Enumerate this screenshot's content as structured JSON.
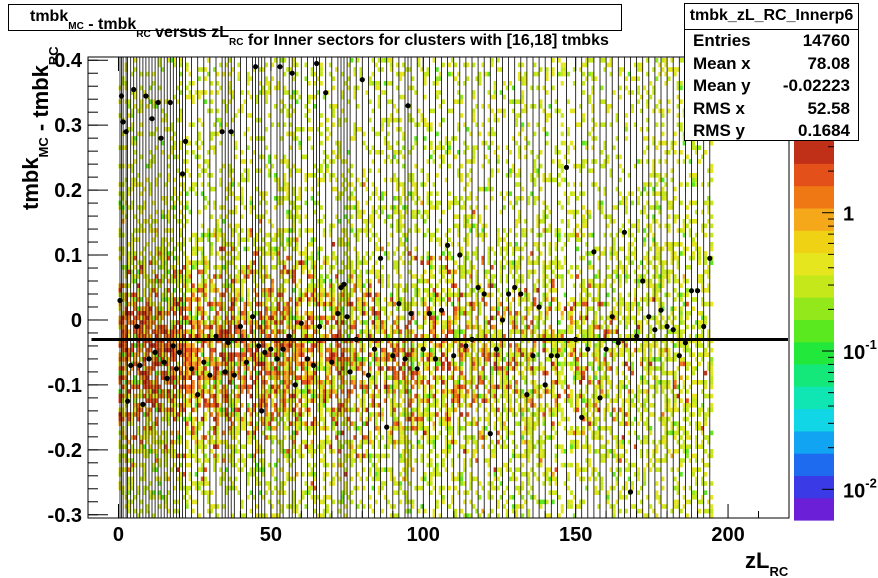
{
  "title": {
    "parts": [
      {
        "text": "tmbk",
        "sub": "MC"
      },
      {
        "text": " - tmbk",
        "sub": "RC"
      },
      {
        "text": " versus zL",
        "sub": "RC"
      },
      {
        "text": " for Inner sectors for clusters with [16,18] tmbks",
        "sub": ""
      }
    ]
  },
  "stats": {
    "name": "tmbk_zL_RC_Innerp6",
    "rows": [
      {
        "label": "Entries",
        "value": "14760"
      },
      {
        "label": "Mean x",
        "value": "78.08"
      },
      {
        "label": "Mean y",
        "value": "-0.02223"
      },
      {
        "label": "RMS x",
        "value": "52.58"
      },
      {
        "label": "RMS y",
        "value": "0.1684"
      }
    ]
  },
  "chart_data": {
    "type": "heatmap",
    "xlabel": {
      "main": "zL",
      "sub": "RC"
    },
    "ylabel": {
      "parts": [
        {
          "text": "tmbk",
          "sub": "MC"
        },
        {
          "text": " - tmbk",
          "sub": "RC"
        }
      ]
    },
    "xlim": [
      -10,
      220
    ],
    "ylim": [
      -0.305,
      0.405
    ],
    "x_ticks": [
      0,
      50,
      100,
      150,
      200
    ],
    "x_tick_labels": [
      "0",
      "50",
      "100",
      "150",
      "200"
    ],
    "y_ticks": [
      -0.3,
      -0.2,
      -0.1,
      0,
      0.1,
      0.2,
      0.3,
      0.4
    ],
    "y_tick_labels": [
      "-0.3",
      "-0.2",
      "-0.1",
      "0",
      "0.1",
      "0.2",
      "0.3",
      "0.4"
    ],
    "z_scale": "log",
    "z_ticks": [
      0.01,
      0.1,
      1
    ],
    "z_tick_labels": [
      {
        "base": "10",
        "exp": "-2"
      },
      {
        "base": "10",
        "exp": "-1"
      },
      {
        "base": "1",
        "exp": ""
      }
    ],
    "palette": [
      "#6b1fd6",
      "#3a3ae6",
      "#1e6bf0",
      "#10a4f2",
      "#10d6e6",
      "#10e6b4",
      "#14e87a",
      "#22e83c",
      "#5ae81e",
      "#92e81a",
      "#c4e81a",
      "#e6e61e",
      "#f0d214",
      "#f4a81a",
      "#f07814",
      "#e4501a",
      "#c03018"
    ],
    "occupied_x_range": [
      0,
      195
    ],
    "mean_line_y": -0.03,
    "profile_points": [
      {
        "x": 0.5,
        "y": 0.03
      },
      {
        "x": 1,
        "y": 0.345
      },
      {
        "x": 1.5,
        "y": 0.305
      },
      {
        "x": 2.5,
        "y": 0.29
      },
      {
        "x": 3,
        "y": -0.125
      },
      {
        "x": 4,
        "y": -0.07
      },
      {
        "x": 5,
        "y": 0.355
      },
      {
        "x": 6,
        "y": -0.01
      },
      {
        "x": 7,
        "y": -0.07
      },
      {
        "x": 8,
        "y": -0.13
      },
      {
        "x": 9,
        "y": 0.345
      },
      {
        "x": 10,
        "y": -0.06
      },
      {
        "x": 11,
        "y": 0.31
      },
      {
        "x": 12,
        "y": -0.05
      },
      {
        "x": 13,
        "y": 0.335
      },
      {
        "x": 14,
        "y": 0.28
      },
      {
        "x": 15,
        "y": -0.065
      },
      {
        "x": 16,
        "y": -0.09
      },
      {
        "x": 17,
        "y": 0.335
      },
      {
        "x": 18,
        "y": -0.04
      },
      {
        "x": 19,
        "y": -0.075
      },
      {
        "x": 20,
        "y": -0.05
      },
      {
        "x": 21,
        "y": 0.225
      },
      {
        "x": 22,
        "y": 0.275
      },
      {
        "x": 24,
        "y": -0.075
      },
      {
        "x": 26,
        "y": -0.115
      },
      {
        "x": 28,
        "y": -0.065
      },
      {
        "x": 30,
        "y": -0.085
      },
      {
        "x": 32,
        "y": -0.025
      },
      {
        "x": 34,
        "y": 0.29
      },
      {
        "x": 35,
        "y": -0.08
      },
      {
        "x": 36,
        "y": -0.035
      },
      {
        "x": 37,
        "y": 0.29
      },
      {
        "x": 38,
        "y": -0.085
      },
      {
        "x": 40,
        "y": -0.01
      },
      {
        "x": 42,
        "y": -0.065
      },
      {
        "x": 44,
        "y": 0.005
      },
      {
        "x": 45,
        "y": 0.39
      },
      {
        "x": 46,
        "y": -0.04
      },
      {
        "x": 47,
        "y": -0.14
      },
      {
        "x": 48,
        "y": -0.05
      },
      {
        "x": 50,
        "y": -0.045
      },
      {
        "x": 52,
        "y": -0.06
      },
      {
        "x": 53,
        "y": 0.39
      },
      {
        "x": 54,
        "y": -0.045
      },
      {
        "x": 56,
        "y": -0.025
      },
      {
        "x": 57,
        "y": 0.38
      },
      {
        "x": 58,
        "y": -0.1
      },
      {
        "x": 60,
        "y": -0.005
      },
      {
        "x": 62,
        "y": -0.06
      },
      {
        "x": 64,
        "y": -0.07
      },
      {
        "x": 65,
        "y": 0.395
      },
      {
        "x": 66,
        "y": -0.01
      },
      {
        "x": 68,
        "y": 0.35
      },
      {
        "x": 70,
        "y": -0.065
      },
      {
        "x": 72,
        "y": 0.01
      },
      {
        "x": 73,
        "y": 0.05
      },
      {
        "x": 74,
        "y": 0.055
      },
      {
        "x": 75,
        "y": 0.005
      },
      {
        "x": 76,
        "y": -0.08
      },
      {
        "x": 78,
        "y": -0.03
      },
      {
        "x": 80,
        "y": 0.37
      },
      {
        "x": 82,
        "y": -0.085
      },
      {
        "x": 84,
        "y": -0.045
      },
      {
        "x": 86,
        "y": 0.095
      },
      {
        "x": 88,
        "y": -0.165
      },
      {
        "x": 90,
        "y": -0.055
      },
      {
        "x": 92,
        "y": 0.025
      },
      {
        "x": 94,
        "y": -0.06
      },
      {
        "x": 95,
        "y": 0.33
      },
      {
        "x": 96,
        "y": 0.01
      },
      {
        "x": 98,
        "y": -0.075
      },
      {
        "x": 100,
        "y": -0.045
      },
      {
        "x": 102,
        "y": 0.01
      },
      {
        "x": 104,
        "y": -0.06
      },
      {
        "x": 106,
        "y": 0.015
      },
      {
        "x": 108,
        "y": 0.115
      },
      {
        "x": 110,
        "y": -0.055
      },
      {
        "x": 112,
        "y": 0.1
      },
      {
        "x": 114,
        "y": -0.04
      },
      {
        "x": 116,
        "y": -0.03
      },
      {
        "x": 118,
        "y": 0.05
      },
      {
        "x": 120,
        "y": 0.04
      },
      {
        "x": 122,
        "y": -0.175
      },
      {
        "x": 124,
        "y": -0.045
      },
      {
        "x": 126,
        "y": 0.0
      },
      {
        "x": 128,
        "y": 0.04
      },
      {
        "x": 130,
        "y": 0.05
      },
      {
        "x": 132,
        "y": 0.04
      },
      {
        "x": 134,
        "y": -0.115
      },
      {
        "x": 136,
        "y": -0.055
      },
      {
        "x": 138,
        "y": 0.02
      },
      {
        "x": 140,
        "y": -0.1
      },
      {
        "x": 142,
        "y": -0.055
      },
      {
        "x": 144,
        "y": -0.055
      },
      {
        "x": 147,
        "y": 0.235
      },
      {
        "x": 150,
        "y": -0.03
      },
      {
        "x": 152,
        "y": -0.15
      },
      {
        "x": 154,
        "y": -0.045
      },
      {
        "x": 156,
        "y": 0.105
      },
      {
        "x": 158,
        "y": -0.12
      },
      {
        "x": 160,
        "y": -0.045
      },
      {
        "x": 162,
        "y": 0.005
      },
      {
        "x": 164,
        "y": -0.035
      },
      {
        "x": 166,
        "y": 0.135
      },
      {
        "x": 168,
        "y": -0.265
      },
      {
        "x": 170,
        "y": -0.025
      },
      {
        "x": 172,
        "y": 0.06
      },
      {
        "x": 174,
        "y": 0.005
      },
      {
        "x": 176,
        "y": -0.015
      },
      {
        "x": 178,
        "y": 0.015
      },
      {
        "x": 180,
        "y": -0.01
      },
      {
        "x": 182,
        "y": -0.015
      },
      {
        "x": 184,
        "y": -0.055
      },
      {
        "x": 186,
        "y": -0.035
      },
      {
        "x": 188,
        "y": 0.045
      },
      {
        "x": 190,
        "y": 0.045
      },
      {
        "x": 192,
        "y": -0.01
      },
      {
        "x": 194,
        "y": 0.095
      }
    ]
  }
}
